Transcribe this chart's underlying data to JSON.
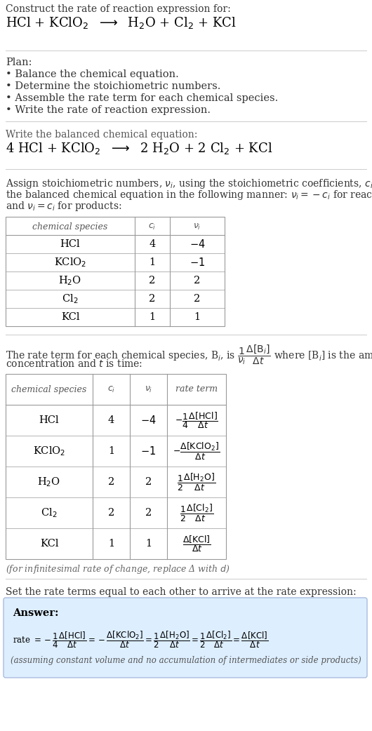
{
  "title_line1": "Construct the rate of reaction expression for:",
  "title_line2": "HCl + KClO$_2$  $\\longrightarrow$  H$_2$O + Cl$_2$ + KCl",
  "plan_header": "Plan:",
  "plan_items": [
    "• Balance the chemical equation.",
    "• Determine the stoichiometric numbers.",
    "• Assemble the rate term for each chemical species.",
    "• Write the rate of reaction expression."
  ],
  "balanced_eq_header": "Write the balanced chemical equation:",
  "balanced_eq": "4 HCl + KClO$_2$  $\\longrightarrow$  2 H$_2$O + 2 Cl$_2$ + KCl",
  "stoich_intro": "Assign stoichiometric numbers, $\\nu_i$, using the stoichiometric coefficients, $c_i$, from\nthe balanced chemical equation in the following manner: $\\nu_i = -c_i$ for reactants\nand $\\nu_i = c_i$ for products:",
  "table1_headers": [
    "chemical species",
    "$c_i$",
    "$\\nu_i$"
  ],
  "table1_rows": [
    [
      "HCl",
      "4",
      "$-4$"
    ],
    [
      "KClO$_2$",
      "1",
      "$-1$"
    ],
    [
      "H$_2$O",
      "2",
      "2"
    ],
    [
      "Cl$_2$",
      "2",
      "2"
    ],
    [
      "KCl",
      "1",
      "1"
    ]
  ],
  "rate_term_intro1": "The rate term for each chemical species, B$_i$, is $\\dfrac{1}{\\nu_i}\\dfrac{\\Delta[\\mathrm{B}_i]}{\\Delta t}$ where [B$_i$] is the amount",
  "rate_term_intro2": "concentration and $t$ is time:",
  "table2_headers": [
    "chemical species",
    "$c_i$",
    "$\\nu_i$",
    "rate term"
  ],
  "table2_rows_col0": [
    "HCl",
    "KClO$_2$",
    "H$_2$O",
    "Cl$_2$",
    "KCl"
  ],
  "table2_rows_col1": [
    "4",
    "1",
    "2",
    "2",
    "1"
  ],
  "table2_rows_col2": [
    "$-4$",
    "$-1$",
    "2",
    "2",
    "1"
  ],
  "table2_rows_col3": [
    "$-\\dfrac{1}{4}\\dfrac{\\Delta[\\mathrm{HCl}]}{\\Delta t}$",
    "$-\\dfrac{\\Delta[\\mathrm{KClO_2}]}{\\Delta t}$",
    "$\\dfrac{1}{2}\\dfrac{\\Delta[\\mathrm{H_2O}]}{\\Delta t}$",
    "$\\dfrac{1}{2}\\dfrac{\\Delta[\\mathrm{Cl_2}]}{\\Delta t}$",
    "$\\dfrac{\\Delta[\\mathrm{KCl}]}{\\Delta t}$"
  ],
  "infinitesimal_note": "(for infinitesimal rate of change, replace Δ with $d$)",
  "set_equal_header": "Set the rate terms equal to each other to arrive at the rate expression:",
  "answer_label": "Answer:",
  "answer_eq": "rate $= -\\dfrac{1}{4}\\dfrac{\\Delta[\\mathrm{HCl}]}{\\Delta t} = -\\dfrac{\\Delta[\\mathrm{KClO_2}]}{\\Delta t} = \\dfrac{1}{2}\\dfrac{\\Delta[\\mathrm{H_2O}]}{\\Delta t} = \\dfrac{1}{2}\\dfrac{\\Delta[\\mathrm{Cl_2}]}{\\Delta t} = \\dfrac{\\Delta[\\mathrm{KCl}]}{\\Delta t}$",
  "answer_note": "(assuming constant volume and no accumulation of intermediates or side products)",
  "bg_color": "#ffffff",
  "table_border_color": "#999999",
  "answer_box_bg": "#ddeeff",
  "answer_box_border": "#aabbdd",
  "text_color": "#000000",
  "gray_text": "#555555",
  "separator_color": "#cccccc"
}
